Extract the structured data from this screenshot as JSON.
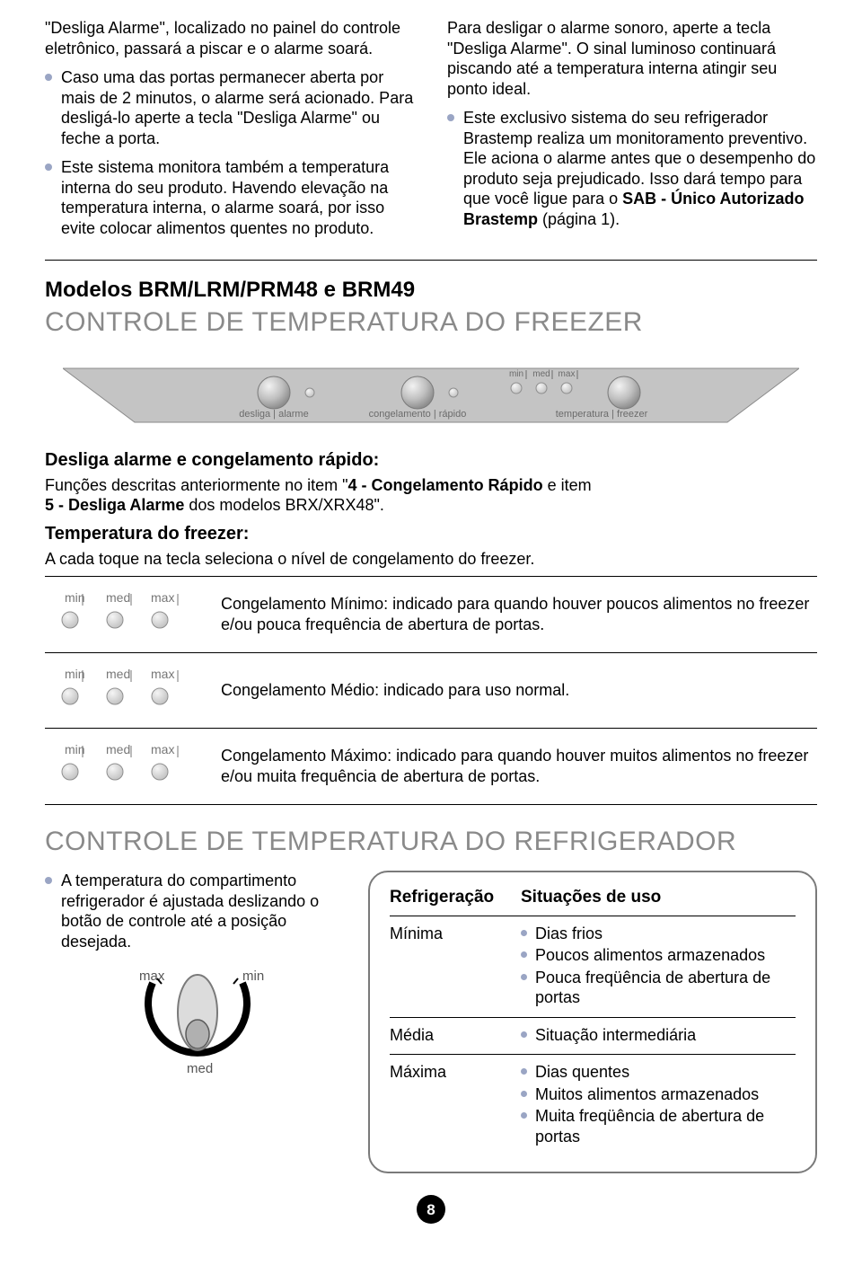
{
  "colors": {
    "bullet": "#9aa5c4",
    "section_gray": "#8a8a8a",
    "panel_fill": "#c4c4c4",
    "panel_text": "#6b6b6b",
    "led_off": "#d4d4d4",
    "led_stroke": "#8f8f8f",
    "button_fill": "url(#btnGrad)"
  },
  "intro": {
    "left": {
      "p1": "\"Desliga Alarme\", localizado no painel do controle eletrônico, passará a piscar e o alarme soará.",
      "b1": "Caso uma das portas permanecer aberta por mais de 2 minutos, o alarme será acionado. Para desligá-lo aperte a tecla \"Desliga Alarme\" ou feche a porta.",
      "b2": "Este sistema monitora também a temperatura interna do seu produto. Havendo elevação na temperatura interna, o alarme soará, por isso evite colocar alimentos quentes no produto."
    },
    "right": {
      "p1": "Para desligar o alarme sonoro, aperte a tecla \"Desliga Alarme\". O sinal luminoso continuará piscando até a temperatura interna atingir seu ponto ideal.",
      "b1_pre": "Este exclusivo sistema do seu refrigerador Brastemp realiza um monitoramento preventivo. Ele aciona o alarme antes que o desempenho do produto seja prejudicado. Isso dará tempo para que você ligue para o ",
      "b1_bold": "SAB - Único Autorizado Brastemp",
      "b1_post": " (página 1)."
    }
  },
  "models_heading": "Modelos BRM/LRM/PRM48 e BRM49",
  "section_freezer": "CONTROLE DE TEMPERATURA DO FREEZER",
  "panel": {
    "labels": {
      "btn1": "desliga | alarme",
      "btn2": "congelamento | rápido",
      "btn3": "temperatura | freezer",
      "min": "min",
      "med": "med",
      "max": "max"
    }
  },
  "sub1_title": "Desliga alarme e congelamento rápido:",
  "sub1_text_pre": "Funções descritas anteriormente no item \"",
  "sub1_bold1": "4 - Congelamento Rápido",
  "sub1_mid": " e item ",
  "sub1_bold2": "5 - Desliga Alarme",
  "sub1_post": " dos modelos BRX/XRX48\".",
  "sub2_title": "Temperatura do freezer:",
  "sub2_text": "A cada toque na tecla seleciona o nível de congelamento do freezer.",
  "levels": [
    {
      "active": 0,
      "desc": "Congelamento Mínimo: indicado para quando houver poucos alimentos no freezer e/ou pouca frequência de abertura de portas."
    },
    {
      "active": 1,
      "desc": "Congelamento Médio: indicado para uso normal."
    },
    {
      "active": 2,
      "desc": "Congelamento Máximo: indicado para quando houver muitos alimentos no freezer e/ou muita frequência de abertura de portas."
    }
  ],
  "level_labels": {
    "min": "min",
    "med": "med",
    "max": "max"
  },
  "section_refrig": "CONTROLE DE TEMPERATURA DO REFRIGERADOR",
  "refrig_left_text": "A temperatura do compartimento refrigerador é ajustada deslizando o botão de controle até a posição desejada.",
  "dial": {
    "max": "max",
    "min": "min",
    "med": "med"
  },
  "table": {
    "h1": "Refrigeração",
    "h2": "Situações de uso",
    "rows": [
      {
        "label": "Mínima",
        "items": [
          "Dias frios",
          "Poucos alimentos armazenados",
          "Pouca freqüência de abertura de portas"
        ]
      },
      {
        "label": "Média",
        "items": [
          "Situação intermediária"
        ]
      },
      {
        "label": "Máxima",
        "items": [
          "Dias quentes",
          "Muitos alimentos armazenados",
          "Muita freqüência de abertura de portas"
        ]
      }
    ]
  },
  "page_number": "8"
}
